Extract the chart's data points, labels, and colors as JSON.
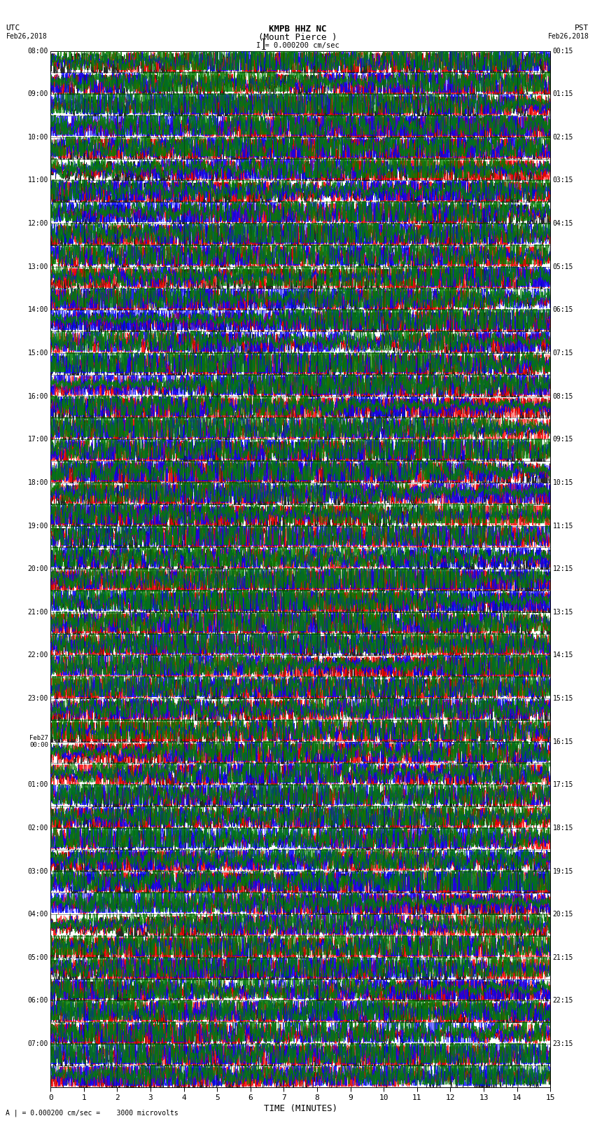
{
  "title_line1": "KMPB HHZ NC",
  "title_line2": "(Mount Pierce )",
  "scale_label": "I = 0.000200 cm/sec",
  "bottom_label": "A | = 0.000200 cm/sec =    3000 microvolts",
  "xlabel": "TIME (MINUTES)",
  "xlim": [
    0,
    15
  ],
  "n_bands": 48,
  "traces_per_band": 4,
  "trace_colors": [
    "black",
    "red",
    "blue",
    "green"
  ],
  "left_times": [
    "08:00",
    "",
    "",
    "",
    "09:00",
    "",
    "",
    "",
    "10:00",
    "",
    "",
    "",
    "11:00",
    "",
    "",
    "",
    "12:00",
    "",
    "",
    "",
    "13:00",
    "",
    "",
    "",
    "14:00",
    "",
    "",
    "",
    "15:00",
    "",
    "",
    "",
    "16:00",
    "",
    "",
    "",
    "17:00",
    "",
    "",
    "",
    "18:00",
    "",
    "",
    "",
    "19:00",
    "",
    "",
    "",
    "20:00",
    "",
    "",
    "",
    "21:00",
    "",
    "",
    "",
    "22:00",
    "",
    "",
    "",
    "23:00",
    "",
    "",
    "",
    "Feb27\n00:00",
    "",
    "",
    "",
    "01:00",
    "",
    "",
    "",
    "02:00",
    "",
    "",
    "",
    "03:00",
    "",
    "",
    "",
    "04:00",
    "",
    "",
    "",
    "05:00",
    "",
    "",
    "",
    "06:00",
    "",
    "",
    "",
    "07:00",
    "",
    "",
    ""
  ],
  "right_times": [
    "00:15",
    "",
    "",
    "",
    "01:15",
    "",
    "",
    "",
    "02:15",
    "",
    "",
    "",
    "03:15",
    "",
    "",
    "",
    "04:15",
    "",
    "",
    "",
    "05:15",
    "",
    "",
    "",
    "06:15",
    "",
    "",
    "",
    "07:15",
    "",
    "",
    "",
    "08:15",
    "",
    "",
    "",
    "09:15",
    "",
    "",
    "",
    "10:15",
    "",
    "",
    "",
    "11:15",
    "",
    "",
    "",
    "12:15",
    "",
    "",
    "",
    "13:15",
    "",
    "",
    "",
    "14:15",
    "",
    "",
    "",
    "15:15",
    "",
    "",
    "",
    "16:15",
    "",
    "",
    "",
    "17:15",
    "",
    "",
    "",
    "18:15",
    "",
    "",
    "",
    "19:15",
    "",
    "",
    "",
    "20:15",
    "",
    "",
    "",
    "21:15",
    "",
    "",
    "",
    "22:15",
    "",
    "",
    "",
    "23:15",
    "",
    "",
    ""
  ],
  "background_color": "white",
  "grid_color": "#000000",
  "figsize": [
    8.5,
    16.13
  ],
  "dpi": 100
}
